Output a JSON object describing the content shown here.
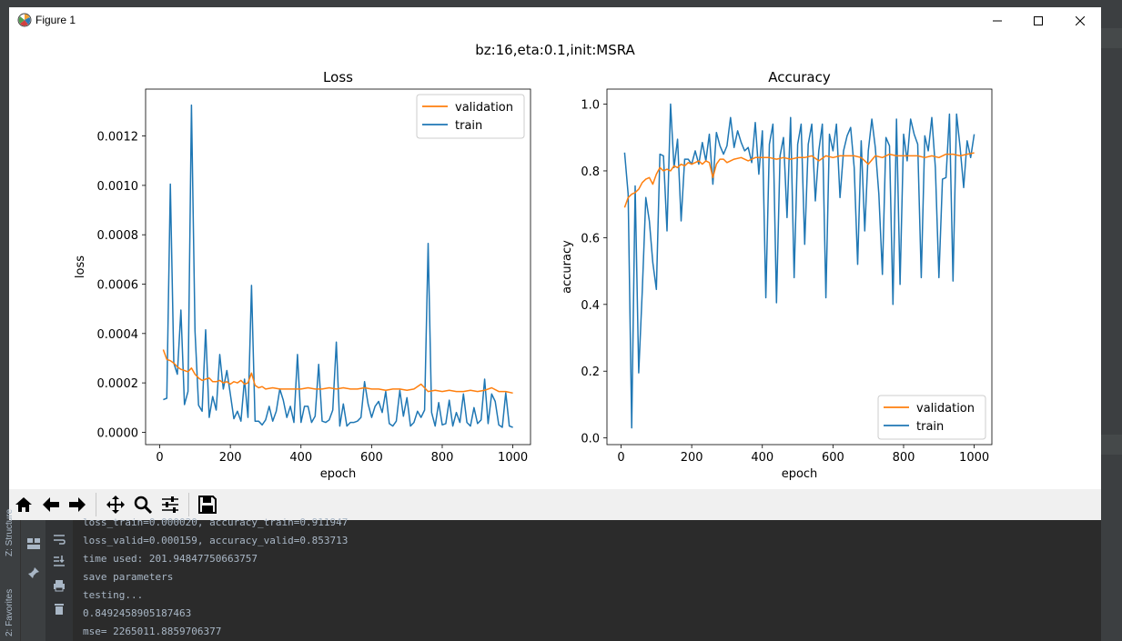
{
  "window": {
    "title": "Figure 1"
  },
  "figure": {
    "suptitle": "bz:16,eta:0.1,init:MSRA"
  },
  "chart_data": [
    {
      "type": "line",
      "title": "Loss",
      "xlabel": "epoch",
      "ylabel": "loss",
      "xlim": [
        -40,
        1050
      ],
      "ylim": [
        -5e-05,
        0.00139
      ],
      "xticks": [
        0,
        200,
        400,
        600,
        800,
        1000
      ],
      "yticks": [
        0.0,
        0.0002,
        0.0004,
        0.0006,
        0.0008,
        0.001,
        0.0012
      ],
      "ytick_labels": [
        "0.0000",
        "0.0002",
        "0.0004",
        "0.0006",
        "0.0008",
        "0.0010",
        "0.0012"
      ],
      "legend": "upper right",
      "grid": false,
      "series": [
        {
          "name": "validation",
          "color": "#ff7f0e",
          "x": [
            10,
            20,
            30,
            40,
            50,
            60,
            70,
            80,
            90,
            100,
            110,
            120,
            130,
            140,
            150,
            160,
            170,
            180,
            190,
            200,
            210,
            220,
            230,
            240,
            250,
            260,
            270,
            280,
            290,
            300,
            320,
            340,
            360,
            380,
            400,
            420,
            440,
            460,
            480,
            500,
            520,
            540,
            560,
            580,
            600,
            620,
            640,
            660,
            680,
            700,
            720,
            740,
            760,
            780,
            800,
            820,
            840,
            860,
            880,
            900,
            920,
            940,
            960,
            980,
            1000
          ],
          "y": [
            0.000335,
            0.000295,
            0.00029,
            0.00028,
            0.000265,
            0.000255,
            0.00025,
            0.000245,
            0.00026,
            0.000235,
            0.00022,
            0.00021,
            0.000215,
            0.00022,
            0.000205,
            0.000205,
            0.00021,
            0.0002,
            0.000205,
            0.000195,
            0.000205,
            0.0002,
            0.00021,
            0.000195,
            0.0002,
            0.00024,
            0.00019,
            0.00018,
            0.000185,
            0.000175,
            0.00018,
            0.000175,
            0.000175,
            0.000175,
            0.000175,
            0.00018,
            0.000175,
            0.000175,
            0.00018,
            0.000175,
            0.00018,
            0.000175,
            0.000175,
            0.00018,
            0.000175,
            0.000175,
            0.00017,
            0.000175,
            0.000175,
            0.00017,
            0.000175,
            0.000195,
            0.000165,
            0.00017,
            0.000165,
            0.00017,
            0.000165,
            0.000165,
            0.00017,
            0.000165,
            0.00017,
            0.00018,
            0.000165,
            0.000165,
            0.000159
          ]
        },
        {
          "name": "train",
          "color": "#1f77b4",
          "x": [
            10,
            20,
            30,
            40,
            50,
            60,
            70,
            80,
            90,
            100,
            110,
            120,
            130,
            140,
            150,
            160,
            170,
            180,
            190,
            200,
            210,
            220,
            230,
            240,
            250,
            260,
            270,
            280,
            290,
            300,
            310,
            320,
            330,
            340,
            350,
            360,
            370,
            380,
            390,
            400,
            410,
            420,
            430,
            440,
            450,
            460,
            470,
            480,
            490,
            500,
            510,
            520,
            530,
            540,
            550,
            560,
            570,
            580,
            590,
            600,
            610,
            620,
            630,
            640,
            650,
            660,
            670,
            680,
            690,
            700,
            710,
            720,
            730,
            740,
            750,
            760,
            770,
            780,
            790,
            800,
            810,
            820,
            830,
            840,
            850,
            860,
            870,
            880,
            890,
            900,
            910,
            920,
            930,
            940,
            950,
            960,
            970,
            980,
            990,
            1000
          ],
          "y": [
            0.000132,
            0.000138,
            0.001005,
            0.00028,
            0.000235,
            0.000495,
            0.000112,
            0.000165,
            0.001325,
            0.00041,
            0.00011,
            8.5e-05,
            0.000415,
            6e-05,
            0.000145,
            9e-05,
            0.000315,
            0.000175,
            0.00025,
            0.000155,
            5.5e-05,
            8.5e-05,
            4.5e-05,
            0.000215,
            6e-05,
            0.000595,
            4.5e-05,
            4.5e-05,
            3e-05,
            5e-05,
            0.000105,
            4.5e-05,
            8.5e-05,
            0.000175,
            0.00013,
            6e-05,
            0.000105,
            4e-05,
            0.000315,
            4e-05,
            0.000105,
            0.000105,
            4e-05,
            6.5e-05,
            0.000275,
            4.5e-05,
            4e-05,
            5e-05,
            9e-05,
            0.000365,
            2.5e-05,
            0.000115,
            2.5e-05,
            4e-05,
            4e-05,
            4.5e-05,
            6e-05,
            0.000205,
            0.000115,
            6e-05,
            0.000105,
            0.000125,
            8e-05,
            0.000165,
            3.5e-05,
            2.5e-05,
            4.5e-05,
            0.00017,
            6.5e-05,
            0.00014,
            2.5e-05,
            4e-05,
            8.5e-05,
            6e-05,
            9e-05,
            0.000765,
            8e-05,
            2.5e-05,
            0.00012,
            3e-05,
            3.5e-05,
            0.00013,
            2.5e-05,
            8e-05,
            4e-05,
            0.000155,
            4e-05,
            2.5e-05,
            0.0001,
            3.5e-05,
            5e-05,
            0.000215,
            3.5e-05,
            0.000155,
            0.000125,
            3e-05,
            2e-05,
            0.00016,
            2.5e-05,
            2e-05
          ]
        }
      ]
    },
    {
      "type": "line",
      "title": "Accuracy",
      "xlabel": "epoch",
      "ylabel": "accuracy",
      "xlim": [
        -40,
        1050
      ],
      "ylim": [
        -0.02,
        1.045
      ],
      "xticks": [
        0,
        200,
        400,
        600,
        800,
        1000
      ],
      "yticks": [
        0.0,
        0.2,
        0.4,
        0.6,
        0.8,
        1.0
      ],
      "ytick_labels": [
        "0.0",
        "0.2",
        "0.4",
        "0.6",
        "0.8",
        "1.0"
      ],
      "legend": "lower right",
      "grid": false,
      "series": [
        {
          "name": "validation",
          "color": "#ff7f0e",
          "x": [
            10,
            20,
            30,
            40,
            50,
            60,
            70,
            80,
            90,
            100,
            110,
            120,
            130,
            140,
            150,
            160,
            170,
            180,
            190,
            200,
            210,
            220,
            230,
            240,
            250,
            260,
            270,
            280,
            290,
            300,
            320,
            340,
            360,
            380,
            400,
            420,
            440,
            460,
            480,
            500,
            520,
            540,
            560,
            580,
            600,
            620,
            640,
            660,
            680,
            700,
            720,
            740,
            760,
            780,
            800,
            820,
            840,
            860,
            880,
            900,
            920,
            940,
            960,
            980,
            1000
          ],
          "y": [
            0.69,
            0.72,
            0.73,
            0.735,
            0.745,
            0.765,
            0.775,
            0.78,
            0.76,
            0.79,
            0.81,
            0.8,
            0.805,
            0.8,
            0.815,
            0.81,
            0.82,
            0.815,
            0.825,
            0.82,
            0.825,
            0.83,
            0.82,
            0.83,
            0.825,
            0.78,
            0.82,
            0.835,
            0.835,
            0.825,
            0.835,
            0.84,
            0.83,
            0.84,
            0.84,
            0.84,
            0.835,
            0.84,
            0.835,
            0.84,
            0.84,
            0.845,
            0.83,
            0.845,
            0.84,
            0.845,
            0.845,
            0.845,
            0.84,
            0.82,
            0.845,
            0.84,
            0.85,
            0.845,
            0.845,
            0.845,
            0.845,
            0.84,
            0.845,
            0.84,
            0.85,
            0.85,
            0.845,
            0.85,
            0.854
          ]
        },
        {
          "name": "train",
          "color": "#1f77b4",
          "x": [
            10,
            20,
            30,
            40,
            50,
            60,
            70,
            80,
            90,
            100,
            110,
            120,
            130,
            140,
            150,
            160,
            170,
            180,
            190,
            200,
            210,
            220,
            230,
            240,
            250,
            260,
            270,
            280,
            290,
            300,
            310,
            320,
            330,
            340,
            350,
            360,
            370,
            380,
            390,
            400,
            410,
            420,
            430,
            440,
            450,
            460,
            470,
            480,
            490,
            500,
            510,
            520,
            530,
            540,
            550,
            560,
            570,
            580,
            590,
            600,
            610,
            620,
            630,
            640,
            650,
            660,
            670,
            680,
            690,
            700,
            710,
            720,
            730,
            740,
            750,
            760,
            770,
            780,
            790,
            800,
            810,
            820,
            830,
            840,
            850,
            860,
            870,
            880,
            890,
            900,
            910,
            920,
            930,
            940,
            950,
            960,
            970,
            980,
            990,
            1000
          ],
          "y": [
            0.855,
            0.73,
            0.03,
            0.755,
            0.195,
            0.44,
            0.72,
            0.65,
            0.525,
            0.445,
            0.85,
            0.845,
            0.62,
            1.0,
            0.81,
            0.895,
            0.65,
            0.835,
            0.835,
            0.82,
            0.86,
            0.82,
            0.885,
            0.83,
            0.91,
            0.76,
            0.915,
            0.875,
            0.85,
            0.875,
            0.96,
            0.87,
            0.92,
            0.885,
            0.86,
            0.87,
            0.825,
            0.945,
            0.79,
            0.92,
            0.42,
            0.88,
            0.94,
            0.405,
            0.845,
            0.9,
            0.66,
            0.96,
            0.48,
            0.88,
            0.94,
            0.58,
            0.88,
            0.94,
            0.71,
            0.86,
            0.94,
            0.42,
            0.91,
            0.86,
            0.94,
            0.72,
            0.86,
            0.905,
            0.93,
            0.81,
            0.52,
            0.89,
            0.62,
            0.86,
            0.955,
            0.87,
            0.73,
            0.49,
            0.9,
            0.875,
            0.4,
            0.955,
            0.46,
            0.91,
            0.83,
            0.955,
            0.91,
            0.88,
            0.48,
            0.905,
            0.86,
            0.96,
            0.81,
            0.48,
            0.775,
            0.78,
            0.97,
            0.47,
            0.97,
            0.87,
            0.75,
            0.89,
            0.84,
            0.91
          ]
        }
      ]
    }
  ],
  "toolbar": {
    "buttons": [
      "home-icon",
      "back-arrow-icon",
      "forward-arrow-icon",
      "pan-icon",
      "zoom-icon",
      "subplots-icon",
      "save-icon"
    ]
  },
  "console": {
    "lines": [
      "loss_train=0.000020, accuracy_train=0.911947",
      "loss_valid=0.000159, accuracy_valid=0.853713",
      "time used: 201.94847750663757",
      "save parameters",
      "testing...",
      "0.8492458905187463",
      "mse= 2265011.8859706377"
    ],
    "side_tabs": [
      "Z: Structure",
      "2: Favorites"
    ]
  }
}
